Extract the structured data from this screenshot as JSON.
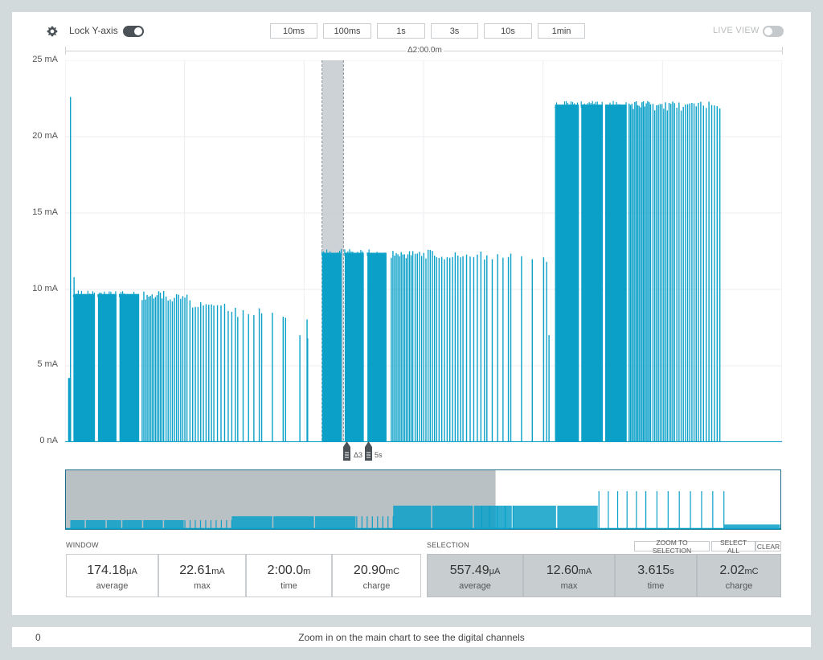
{
  "toolbar": {
    "lock_y_axis_label": "Lock Y-axis",
    "lock_y_axis_on": true,
    "live_view_label": "LIVE VIEW",
    "live_view_on": false,
    "zoom_buttons": [
      "10ms",
      "100ms",
      "1s",
      "3s",
      "10s",
      "1min"
    ],
    "window_delta_label": "Δ2:00.0m"
  },
  "colors": {
    "trace": "#0aa0c8",
    "selection_overlay": "#c7cdd0",
    "minimap_window": "#b9c1c5",
    "background": "#d2dadc"
  },
  "cursor": {
    "delta_label": "Δ3",
    "delta_suffix": "5s"
  },
  "window": {
    "title": "WINDOW",
    "stats": [
      {
        "value": "174.18",
        "unit": "μA",
        "label": "average"
      },
      {
        "value": "22.61",
        "unit": "mA",
        "label": "max"
      },
      {
        "value": "2:00.0",
        "unit": "m",
        "label": "time"
      },
      {
        "value": "20.90",
        "unit": "mC",
        "label": "charge"
      }
    ]
  },
  "selection": {
    "title": "SELECTION",
    "buttons": [
      "ZOOM TO SELECTION",
      "SELECT ALL",
      "CLEAR"
    ],
    "stats": [
      {
        "value": "557.49",
        "unit": "μA",
        "label": "average"
      },
      {
        "value": "12.60",
        "unit": "mA",
        "label": "max"
      },
      {
        "value": "3.615",
        "unit": "s",
        "label": "time"
      },
      {
        "value": "2.02",
        "unit": "mC",
        "label": "charge"
      }
    ]
  },
  "digital_channels": {
    "index_label": "0",
    "message": "Zoom in on the main chart to see the digital channels"
  },
  "chart_data": {
    "type": "area",
    "unit": "mA",
    "ylim": [
      0,
      25
    ],
    "y_tick_labels": [
      "25 mA",
      "20 mA",
      "15 mA",
      "10 mA",
      "5 mA",
      "0 nA"
    ],
    "x_window_s": [
      0,
      120
    ],
    "grid": true,
    "selection_s": [
      43.0,
      46.6
    ],
    "spikes": [
      {
        "t_s": 0.9,
        "peak_mA": 22.6
      },
      {
        "t_s": 1.5,
        "peak_mA": 10.8
      }
    ],
    "baseline_segments": [
      {
        "t_s": [
          0.5,
          1.0
        ],
        "level_mA": 4.2
      }
    ],
    "dense_blocks": [
      {
        "t_s": [
          1.4,
          5.0
        ],
        "level_mA": 9.7
      },
      {
        "t_s": [
          5.5,
          8.6
        ],
        "level_mA": 9.7
      },
      {
        "t_s": [
          9.1,
          12.4
        ],
        "level_mA": 9.7
      },
      {
        "t_s": [
          43.0,
          46.3
        ],
        "level_mA": 12.4
      },
      {
        "t_s": [
          46.8,
          50.0
        ],
        "level_mA": 12.4
      },
      {
        "t_s": [
          50.6,
          53.8
        ],
        "level_mA": 12.4
      },
      {
        "t_s": [
          82.0,
          86.0
        ],
        "level_mA": 22.1
      },
      {
        "t_s": [
          86.4,
          90.0
        ],
        "level_mA": 22.1
      },
      {
        "t_s": [
          90.4,
          94.0
        ],
        "level_mA": 22.1
      }
    ],
    "pulse_groups": [
      {
        "t_s": [
          12.9,
          16.5
        ],
        "level_mA": 9.6,
        "count": 14
      },
      {
        "t_s": [
          16.9,
          20.4
        ],
        "level_mA": 9.4,
        "count": 11
      },
      {
        "t_s": [
          20.9,
          24.5
        ],
        "level_mA": 9.1,
        "count": 9
      },
      {
        "t_s": [
          24.9,
          28.5
        ],
        "level_mA": 8.8,
        "count": 7
      },
      {
        "t_s": [
          28.9,
          32.5
        ],
        "level_mA": 8.5,
        "count": 5
      },
      {
        "t_s": [
          32.9,
          36.5
        ],
        "level_mA": 8.2,
        "count": 3
      },
      {
        "t_s": [
          36.9,
          40.5
        ],
        "level_mA": 7.9,
        "count": 2
      },
      {
        "t_s": [
          54.6,
          58.2
        ],
        "level_mA": 12.3,
        "count": 14
      },
      {
        "t_s": [
          58.6,
          62.2
        ],
        "level_mA": 12.3,
        "count": 11
      },
      {
        "t_s": [
          62.6,
          66.2
        ],
        "level_mA": 12.2,
        "count": 9
      },
      {
        "t_s": [
          66.6,
          70.2
        ],
        "level_mA": 12.2,
        "count": 7
      },
      {
        "t_s": [
          70.6,
          74.2
        ],
        "level_mA": 12.1,
        "count": 5
      },
      {
        "t_s": [
          74.6,
          78.2
        ],
        "level_mA": 12.1,
        "count": 3
      },
      {
        "t_s": [
          94.4,
          98.0
        ],
        "level_mA": 22.1,
        "count": 16
      },
      {
        "t_s": [
          98.4,
          102.0
        ],
        "level_mA": 22.0,
        "count": 13
      },
      {
        "t_s": [
          102.4,
          106.0
        ],
        "level_mA": 22.0,
        "count": 11
      },
      {
        "t_s": [
          106.4,
          109.6
        ],
        "level_mA": 22.0,
        "count": 8
      }
    ],
    "single_pulses": [
      {
        "t_s": 39.3,
        "peak_mA": 7.0
      },
      {
        "t_s": 40.6,
        "peak_mA": 6.8
      },
      {
        "t_s": 80.1,
        "peak_mA": 12.1
      },
      {
        "t_s": 80.6,
        "peak_mA": 11.8
      },
      {
        "t_s": 81.0,
        "peak_mA": 7.0
      }
    ],
    "overview": {
      "x_range_s": [
        0,
        275
      ],
      "window_s": [
        0,
        165
      ],
      "dense_blocks": [
        {
          "t_s": [
            2,
            8
          ],
          "level_mA": 4.0
        },
        {
          "t_s": [
            8,
            16
          ],
          "level_mA": 4.0
        },
        {
          "t_s": [
            16,
            22
          ],
          "level_mA": 4.0
        },
        {
          "t_s": [
            22,
            30
          ],
          "level_mA": 4.0
        },
        {
          "t_s": [
            30,
            38
          ],
          "level_mA": 4.0
        },
        {
          "t_s": [
            38,
            46
          ],
          "level_mA": 4.0
        },
        {
          "t_s": [
            64,
            80
          ],
          "level_mA": 5.6
        },
        {
          "t_s": [
            80,
            96
          ],
          "level_mA": 5.6
        },
        {
          "t_s": [
            96,
            112
          ],
          "level_mA": 5.6
        },
        {
          "t_s": [
            126,
            141
          ],
          "level_mA": 10.0
        },
        {
          "t_s": [
            141,
            157
          ],
          "level_mA": 10.0
        },
        {
          "t_s": [
            157,
            172
          ],
          "level_mA": 10.0
        },
        {
          "t_s": [
            172,
            189
          ],
          "level_mA": 10.0
        },
        {
          "t_s": [
            189,
            205
          ],
          "level_mA": 10.0
        },
        {
          "t_s": [
            253,
            275
          ],
          "level_mA": 2.2
        }
      ],
      "pulse_groups": [
        {
          "t_s": [
            46,
            64
          ],
          "level_mA": 4.0,
          "count": 10
        },
        {
          "t_s": [
            112,
            126
          ],
          "level_mA": 5.6,
          "count": 8
        },
        {
          "t_s": [
            160,
            172
          ],
          "level_mA": 10.0,
          "count": 5
        },
        {
          "t_s": [
            205,
            223
          ],
          "level_mA": 16.0,
          "count": 6
        },
        {
          "t_s": [
            223,
            253
          ],
          "level_mA": 16.0,
          "count": 8
        }
      ],
      "ylim": [
        0,
        25
      ]
    }
  }
}
